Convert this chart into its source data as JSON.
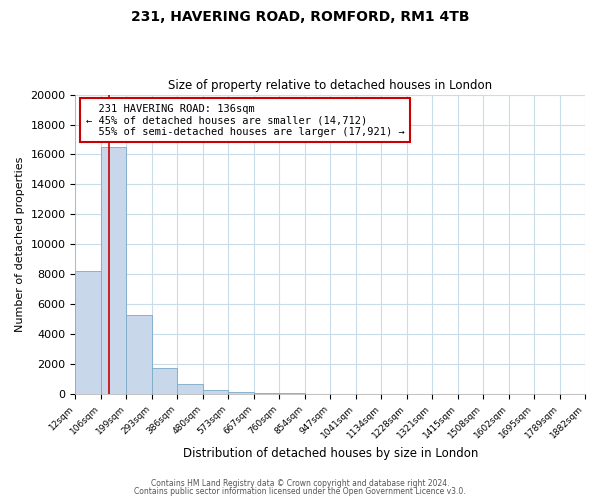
{
  "title1": "231, HAVERING ROAD, ROMFORD, RM1 4TB",
  "title2": "Size of property relative to detached houses in London",
  "xlabel": "Distribution of detached houses by size in London",
  "ylabel": "Number of detached properties",
  "bar_labels": [
    "12sqm",
    "106sqm",
    "199sqm",
    "293sqm",
    "386sqm",
    "480sqm",
    "573sqm",
    "667sqm",
    "760sqm",
    "854sqm",
    "947sqm",
    "1041sqm",
    "1134sqm",
    "1228sqm",
    "1321sqm",
    "1415sqm",
    "1508sqm",
    "1602sqm",
    "1695sqm",
    "1789sqm",
    "1882sqm"
  ],
  "bar_values": [
    8200,
    16500,
    5300,
    1750,
    650,
    280,
    160,
    110,
    100,
    0,
    0,
    0,
    0,
    0,
    0,
    0,
    0,
    0,
    0,
    0
  ],
  "bin_edges_sqm": [
    12,
    106,
    199,
    293,
    386,
    480,
    573,
    667,
    760,
    854,
    947,
    1041,
    1134,
    1228,
    1321,
    1415,
    1508,
    1602,
    1695,
    1789,
    1882
  ],
  "property_size": 136,
  "property_label": "231 HAVERING ROAD: 136sqm",
  "pct_smaller": 45,
  "n_smaller": 14712,
  "pct_larger": 55,
  "n_larger": 17921,
  "bar_color": "#c8d8ea",
  "bar_edge_color": "#7aaac8",
  "vline_color": "#cc0000",
  "annotation_box_edge": "#cc0000",
  "ylim": [
    0,
    20000
  ],
  "yticks": [
    0,
    2000,
    4000,
    6000,
    8000,
    10000,
    12000,
    14000,
    16000,
    18000,
    20000
  ],
  "grid_color": "#c8dcea",
  "footer1": "Contains HM Land Registry data © Crown copyright and database right 2024.",
  "footer2": "Contains public sector information licensed under the Open Government Licence v3.0."
}
